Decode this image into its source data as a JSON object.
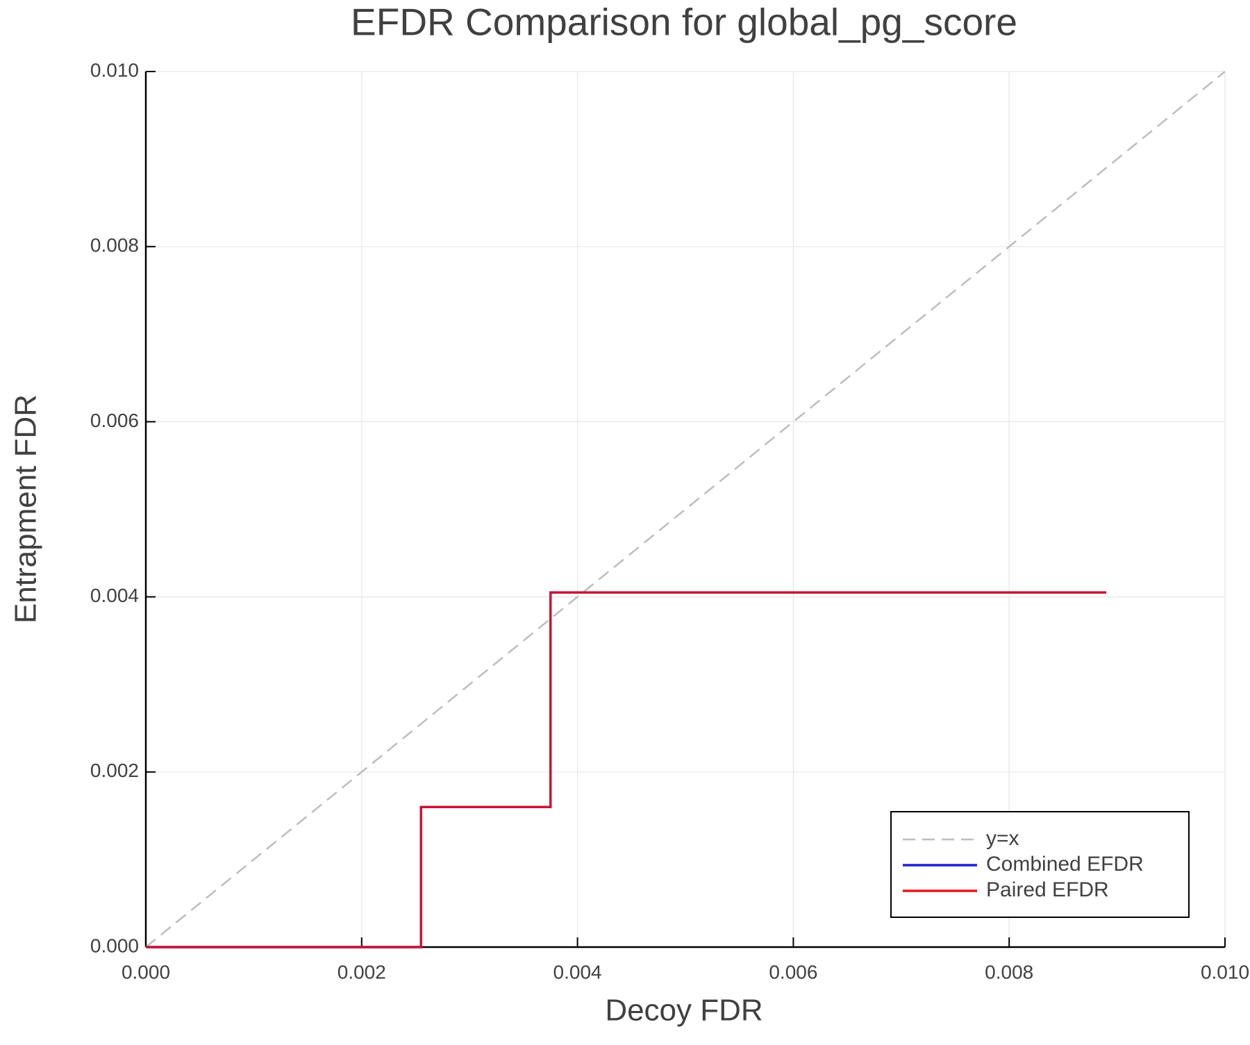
{
  "chart_data": {
    "type": "line",
    "title": "EFDR Comparison for global_pg_score",
    "x_label": "Decoy FDR",
    "y_label": "Entrapment FDR",
    "xlim": [
      0,
      0.01
    ],
    "ylim": [
      0,
      0.01
    ],
    "xticks": [
      {
        "value": 0,
        "label": "0.000"
      },
      {
        "value": 0.002,
        "label": "0.002"
      },
      {
        "value": 0.004,
        "label": "0.004"
      },
      {
        "value": 0.006,
        "label": "0.006"
      },
      {
        "value": 0.008,
        "label": "0.008"
      },
      {
        "value": 0.01,
        "label": "0.010"
      }
    ],
    "yticks": [
      {
        "value": 0,
        "label": "0.000"
      },
      {
        "value": 0.002,
        "label": "0.002"
      },
      {
        "value": 0.004,
        "label": "0.004"
      },
      {
        "value": 0.006,
        "label": "0.006"
      },
      {
        "value": 0.008,
        "label": "0.008"
      },
      {
        "value": 0.01,
        "label": "0.010"
      }
    ],
    "grid": true,
    "legend": "bottom-right",
    "series": [
      {
        "name": "y=x",
        "color": "#bdbdbd",
        "dashed": true,
        "x": [
          0,
          0.01
        ],
        "values": [
          0,
          0.01
        ]
      },
      {
        "name": "Combined EFDR",
        "color": "#1f1fd6",
        "x": [
          0,
          0.00255,
          0.00255,
          0.00375,
          0.00375,
          0.0089
        ],
        "values": [
          0,
          0,
          0.0016,
          0.0016,
          0.00405,
          0.00405
        ]
      },
      {
        "name": "Paired EFDR",
        "color": "#e8141c",
        "x": [
          0,
          0.00255,
          0.00255,
          0.00375,
          0.00375,
          0.0089
        ],
        "values": [
          0,
          0,
          0.0016,
          0.0016,
          0.00405,
          0.00405
        ]
      }
    ]
  }
}
